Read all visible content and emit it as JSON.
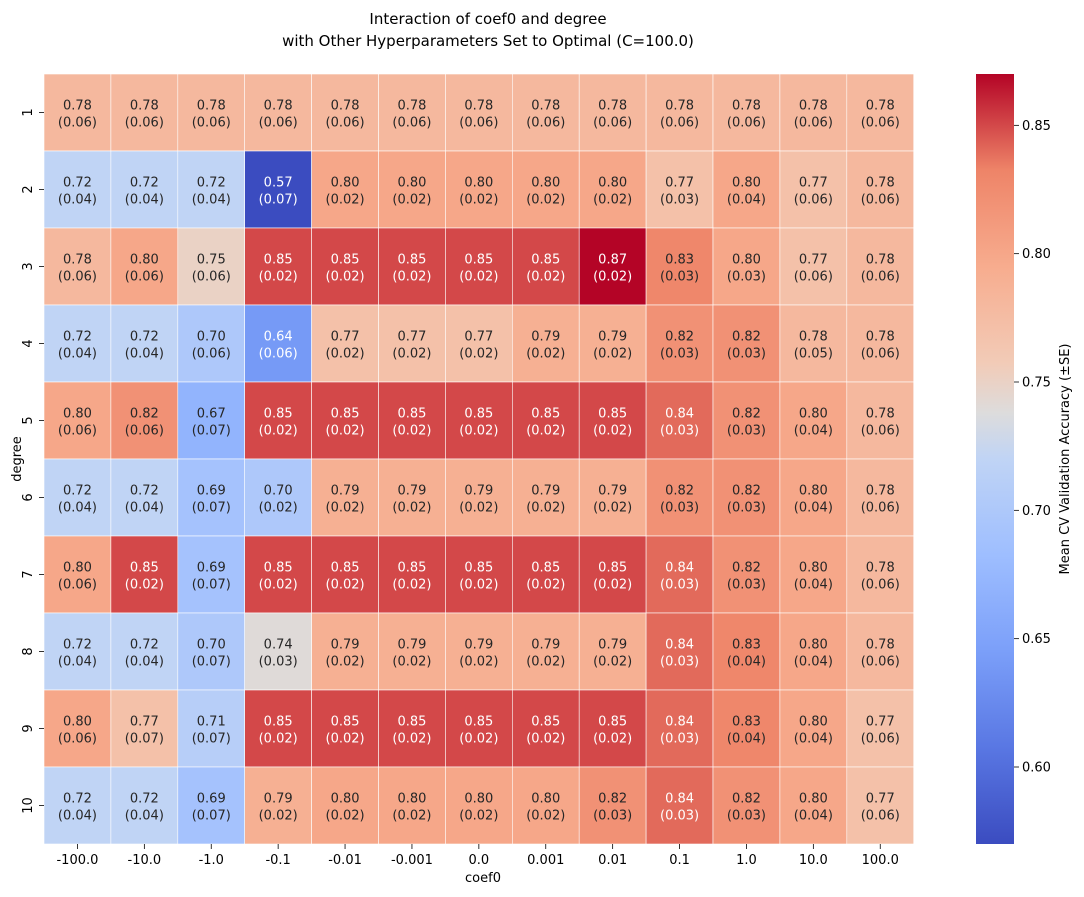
{
  "chart_data": {
    "type": "heatmap",
    "title_line1": "Interaction of coef0 and degree",
    "title_line2": "with Other Hyperparameters Set to Optimal (C=100.0)",
    "xlabel": "coef0",
    "ylabel": "degree",
    "x_categories": [
      "-100.0",
      "-10.0",
      "-1.0",
      "-0.1",
      "-0.01",
      "-0.001",
      "0.0",
      "0.001",
      "0.01",
      "0.1",
      "1.0",
      "10.0",
      "100.0"
    ],
    "y_categories": [
      "1",
      "2",
      "3",
      "4",
      "5",
      "6",
      "7",
      "8",
      "9",
      "10"
    ],
    "values": [
      [
        0.78,
        0.78,
        0.78,
        0.78,
        0.78,
        0.78,
        0.78,
        0.78,
        0.78,
        0.78,
        0.78,
        0.78,
        0.78
      ],
      [
        0.72,
        0.72,
        0.72,
        0.57,
        0.8,
        0.8,
        0.8,
        0.8,
        0.8,
        0.77,
        0.8,
        0.77,
        0.78
      ],
      [
        0.78,
        0.8,
        0.75,
        0.85,
        0.85,
        0.85,
        0.85,
        0.85,
        0.87,
        0.83,
        0.8,
        0.77,
        0.78
      ],
      [
        0.72,
        0.72,
        0.7,
        0.64,
        0.77,
        0.77,
        0.77,
        0.79,
        0.79,
        0.82,
        0.82,
        0.78,
        0.78
      ],
      [
        0.8,
        0.82,
        0.67,
        0.85,
        0.85,
        0.85,
        0.85,
        0.85,
        0.85,
        0.84,
        0.82,
        0.8,
        0.78
      ],
      [
        0.72,
        0.72,
        0.69,
        0.7,
        0.79,
        0.79,
        0.79,
        0.79,
        0.79,
        0.82,
        0.82,
        0.8,
        0.78
      ],
      [
        0.8,
        0.85,
        0.69,
        0.85,
        0.85,
        0.85,
        0.85,
        0.85,
        0.85,
        0.84,
        0.82,
        0.8,
        0.78
      ],
      [
        0.72,
        0.72,
        0.7,
        0.74,
        0.79,
        0.79,
        0.79,
        0.79,
        0.79,
        0.84,
        0.83,
        0.8,
        0.78
      ],
      [
        0.8,
        0.77,
        0.71,
        0.85,
        0.85,
        0.85,
        0.85,
        0.85,
        0.85,
        0.84,
        0.83,
        0.8,
        0.77
      ],
      [
        0.72,
        0.72,
        0.69,
        0.79,
        0.8,
        0.8,
        0.8,
        0.8,
        0.82,
        0.84,
        0.82,
        0.8,
        0.77
      ]
    ],
    "errors": [
      [
        0.06,
        0.06,
        0.06,
        0.06,
        0.06,
        0.06,
        0.06,
        0.06,
        0.06,
        0.06,
        0.06,
        0.06,
        0.06
      ],
      [
        0.04,
        0.04,
        0.04,
        0.07,
        0.02,
        0.02,
        0.02,
        0.02,
        0.02,
        0.03,
        0.04,
        0.06,
        0.06
      ],
      [
        0.06,
        0.06,
        0.06,
        0.02,
        0.02,
        0.02,
        0.02,
        0.02,
        0.02,
        0.03,
        0.03,
        0.06,
        0.06
      ],
      [
        0.04,
        0.04,
        0.06,
        0.06,
        0.02,
        0.02,
        0.02,
        0.02,
        0.02,
        0.03,
        0.03,
        0.05,
        0.06
      ],
      [
        0.06,
        0.06,
        0.07,
        0.02,
        0.02,
        0.02,
        0.02,
        0.02,
        0.02,
        0.03,
        0.03,
        0.04,
        0.06
      ],
      [
        0.04,
        0.04,
        0.07,
        0.02,
        0.02,
        0.02,
        0.02,
        0.02,
        0.02,
        0.03,
        0.03,
        0.04,
        0.06
      ],
      [
        0.06,
        0.02,
        0.07,
        0.02,
        0.02,
        0.02,
        0.02,
        0.02,
        0.02,
        0.03,
        0.03,
        0.04,
        0.06
      ],
      [
        0.04,
        0.04,
        0.07,
        0.03,
        0.02,
        0.02,
        0.02,
        0.02,
        0.02,
        0.03,
        0.04,
        0.04,
        0.06
      ],
      [
        0.06,
        0.07,
        0.07,
        0.02,
        0.02,
        0.02,
        0.02,
        0.02,
        0.02,
        0.03,
        0.04,
        0.04,
        0.06
      ],
      [
        0.04,
        0.04,
        0.07,
        0.02,
        0.02,
        0.02,
        0.02,
        0.02,
        0.03,
        0.03,
        0.03,
        0.04,
        0.06
      ]
    ],
    "colorbar": {
      "label": "Mean CV Validation Accuracy (±SE)",
      "min": 0.57,
      "max": 0.87,
      "ticks": [
        "0.60",
        "0.65",
        "0.70",
        "0.75",
        "0.80",
        "0.85"
      ],
      "colormap": "coolwarm",
      "low_color": "#3b4cc0",
      "mid_color": "#dddddd",
      "high_color": "#b40426"
    },
    "grid": false,
    "cell_border_color": "#ffffff"
  }
}
